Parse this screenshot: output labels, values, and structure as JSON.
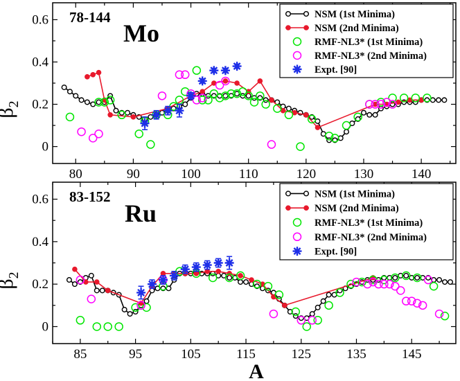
{
  "figure": {
    "xlabel": "A",
    "ylabel_main": "β",
    "ylabel_sub": "2"
  },
  "chart_data": [
    {
      "type": "line",
      "panel": "top",
      "label_mass": "78-144",
      "label_element": "Mo",
      "xlim": [
        76,
        146
      ],
      "ylim": [
        -0.08,
        0.68
      ],
      "xticks": [
        80,
        90,
        100,
        110,
        120,
        130,
        140
      ],
      "xtick_labels": [
        "80",
        "90",
        "100",
        "110",
        "120",
        "130",
        "140"
      ],
      "yticks": [
        0,
        0.2,
        0.4,
        0.6
      ],
      "ytick_labels": [
        "0",
        "0.2",
        "0.4",
        "0.6"
      ],
      "legend_position": "top-right",
      "series": [
        {
          "name": "NSM (1st Minima)",
          "style": "line-open-circle",
          "color": "#000000",
          "x": [
            78,
            79,
            80,
            81,
            82,
            83,
            84,
            85,
            86,
            87,
            88,
            89,
            90,
            91,
            92,
            93,
            94,
            95,
            96,
            97,
            98,
            99,
            100,
            101,
            102,
            103,
            104,
            105,
            106,
            107,
            108,
            109,
            110,
            111,
            112,
            113,
            114,
            115,
            116,
            117,
            118,
            119,
            120,
            121,
            122,
            123,
            124,
            125,
            126,
            127,
            128,
            129,
            130,
            131,
            132,
            133,
            134,
            135,
            136,
            137,
            138,
            139,
            140,
            141,
            142,
            143,
            144
          ],
          "y": [
            0.28,
            0.26,
            0.24,
            0.22,
            0.21,
            0.2,
            0.21,
            0.21,
            0.24,
            0.17,
            0.16,
            0.16,
            0.15,
            0.14,
            0.13,
            0.14,
            0.15,
            0.16,
            0.17,
            0.18,
            0.19,
            0.2,
            0.23,
            0.25,
            0.25,
            0.24,
            0.24,
            0.24,
            0.24,
            0.24,
            0.25,
            0.24,
            0.24,
            0.23,
            0.23,
            0.22,
            0.22,
            0.21,
            0.19,
            0.18,
            0.17,
            0.16,
            0.15,
            0.14,
            0.12,
            0.06,
            0.03,
            0.03,
            0.04,
            0.07,
            0.11,
            0.13,
            0.16,
            0.15,
            0.15,
            0.18,
            0.19,
            0.2,
            0.2,
            0.21,
            0.21,
            0.21,
            0.22,
            0.22,
            0.22,
            0.22,
            0.22
          ]
        },
        {
          "name": "NSM (2nd Minima)",
          "style": "line-filled-circle",
          "color": "#e8192c",
          "x": [
            82,
            83,
            84,
            85,
            86,
            90,
            96,
            100,
            102,
            104,
            106,
            108,
            110,
            112,
            114,
            116,
            118,
            120,
            122,
            132,
            134,
            136,
            138,
            140
          ],
          "y": [
            0.33,
            0.34,
            0.35,
            0.22,
            0.15,
            0.14,
            0.18,
            0.24,
            0.26,
            0.3,
            0.31,
            0.3,
            0.26,
            0.31,
            0.22,
            0.17,
            0.16,
            0.15,
            0.09,
            0.2,
            0.2,
            0.21,
            0.22,
            0.22
          ]
        },
        {
          "name": "RMF-NL3* (1st Minima)",
          "style": "open-circle",
          "color": "#00e600",
          "x": [
            79,
            84,
            85,
            86,
            88,
            91,
            92,
            93,
            94,
            96,
            97,
            98,
            99,
            101,
            102,
            103,
            104,
            105,
            106,
            107,
            108,
            109,
            110,
            111,
            112,
            113,
            115,
            117,
            119,
            121,
            124,
            125,
            127,
            129,
            131,
            133,
            135,
            137,
            139,
            141
          ],
          "y": [
            0.14,
            0.21,
            0.21,
            0.22,
            0.15,
            0.06,
            0.12,
            0.01,
            0.15,
            0.15,
            0.19,
            0.22,
            0.26,
            0.36,
            0.22,
            0.22,
            0.25,
            0.23,
            0.24,
            0.25,
            0.25,
            0.26,
            0.24,
            0.21,
            0.24,
            0.2,
            0.18,
            0.15,
            0.0,
            0.13,
            0.05,
            0.04,
            0.1,
            0.14,
            0.2,
            0.21,
            0.23,
            0.23,
            0.23,
            0.23
          ]
        },
        {
          "name": "RMF-NL3* (2nd Minima)",
          "style": "open-circle",
          "color": "#ff00ff",
          "x": [
            81,
            83,
            84,
            95,
            98,
            99,
            100,
            101,
            102,
            105,
            106,
            114,
            131,
            132,
            133,
            134,
            135
          ],
          "y": [
            0.07,
            0.04,
            0.06,
            0.24,
            0.34,
            0.34,
            0.25,
            0.22,
            0.23,
            0.29,
            0.31,
            0.01,
            0.2,
            0.2,
            0.2,
            0.21,
            0.2
          ]
        },
        {
          "name": "Expt. [90]",
          "style": "star-errorbar",
          "color": "#1e2fe8",
          "x": [
            92,
            94,
            96,
            98,
            100,
            102,
            104,
            106,
            108
          ],
          "y": [
            0.11,
            0.15,
            0.17,
            0.17,
            0.24,
            0.31,
            0.36,
            0.36,
            0.38
          ],
          "err": [
            0.03,
            0.02,
            0.02,
            0.03,
            0.015,
            0.01,
            0.01,
            0.01,
            0.01
          ]
        }
      ]
    },
    {
      "type": "line",
      "panel": "bottom",
      "label_mass": "83-152",
      "label_element": "Ru",
      "xlim": [
        80,
        153
      ],
      "ylim": [
        -0.08,
        0.68
      ],
      "xticks": [
        85,
        95,
        105,
        115,
        125,
        135,
        145
      ],
      "xtick_labels": [
        "85",
        "95",
        "105",
        "115",
        "125",
        "135",
        "145"
      ],
      "yticks": [
        0,
        0.2,
        0.4,
        0.6
      ],
      "ytick_labels": [
        "0",
        "0.2",
        "0.4",
        "0.6"
      ],
      "legend_position": "top-right",
      "series": [
        {
          "name": "NSM (1st Minima)",
          "style": "line-open-circle",
          "color": "#000000",
          "x": [
            83,
            84,
            85,
            86,
            87,
            88,
            89,
            90,
            91,
            92,
            93,
            94,
            95,
            96,
            97,
            98,
            99,
            100,
            101,
            102,
            103,
            104,
            105,
            106,
            107,
            108,
            109,
            110,
            111,
            112,
            113,
            114,
            115,
            116,
            117,
            118,
            119,
            120,
            121,
            122,
            123,
            124,
            125,
            126,
            127,
            128,
            129,
            130,
            131,
            132,
            133,
            134,
            135,
            136,
            137,
            138,
            139,
            140,
            141,
            142,
            143,
            144,
            145,
            146,
            147,
            148,
            149,
            150,
            151,
            152
          ],
          "y": [
            0.22,
            0.2,
            0.21,
            0.23,
            0.24,
            0.17,
            0.17,
            0.17,
            0.16,
            0.15,
            0.08,
            0.06,
            0.07,
            0.1,
            0.12,
            0.17,
            0.18,
            0.18,
            0.18,
            0.22,
            0.25,
            0.25,
            0.25,
            0.26,
            0.25,
            0.25,
            0.25,
            0.24,
            0.24,
            0.23,
            0.23,
            0.21,
            0.21,
            0.2,
            0.19,
            0.18,
            0.17,
            0.16,
            0.13,
            0.1,
            0.07,
            0.05,
            0.04,
            0.04,
            0.06,
            0.09,
            0.12,
            0.15,
            0.15,
            0.17,
            0.18,
            0.19,
            0.2,
            0.21,
            0.22,
            0.22,
            0.22,
            0.23,
            0.23,
            0.23,
            0.24,
            0.24,
            0.23,
            0.23,
            0.23,
            0.23,
            0.22,
            0.22,
            0.21,
            0.21
          ]
        },
        {
          "name": "NSM (2nd Minima)",
          "style": "line-filled-circle",
          "color": "#e8192c",
          "x": [
            84,
            86,
            88,
            90,
            96,
            98,
            100,
            102,
            104,
            106,
            108,
            110,
            112,
            114,
            116,
            118,
            120,
            122,
            138
          ],
          "y": [
            0.27,
            0.21,
            0.21,
            0.17,
            0.11,
            0.19,
            0.25,
            0.25,
            0.25,
            0.25,
            0.26,
            0.26,
            0.25,
            0.24,
            0.22,
            0.2,
            0.14,
            0.1,
            0.23
          ]
        },
        {
          "name": "RMF-NL3* (1st Minima)",
          "style": "open-circle",
          "color": "#00e600",
          "x": [
            85,
            88,
            90,
            92,
            95,
            97,
            100,
            103,
            106,
            109,
            112,
            114,
            117,
            119,
            121,
            124,
            126,
            128,
            130,
            132,
            134,
            136,
            138,
            140,
            142,
            144,
            146,
            149,
            151
          ],
          "y": [
            0.03,
            0.0,
            0.0,
            0.0,
            0.09,
            0.09,
            0.19,
            0.26,
            0.25,
            0.23,
            0.23,
            0.24,
            0.2,
            0.19,
            0.15,
            0.07,
            0.0,
            0.03,
            0.1,
            0.16,
            0.2,
            0.21,
            0.22,
            0.22,
            0.23,
            0.24,
            0.23,
            0.19,
            0.05
          ]
        },
        {
          "name": "RMF-NL3* (2nd Minima)",
          "style": "open-circle",
          "color": "#ff00ff",
          "x": [
            85,
            87,
            96,
            100,
            120,
            125,
            127,
            135,
            137,
            138,
            139,
            140,
            141,
            142,
            143,
            144,
            145,
            146,
            147,
            148,
            150
          ],
          "y": [
            0.22,
            0.13,
            0.1,
            0.22,
            0.06,
            0.03,
            0.03,
            0.21,
            0.2,
            0.21,
            0.2,
            0.2,
            0.2,
            0.19,
            0.17,
            0.12,
            0.12,
            0.11,
            0.1,
            0.22,
            0.06
          ]
        },
        {
          "name": "Expt. [90]",
          "style": "star-errorbar",
          "color": "#1e2fe8",
          "x": [
            96,
            98,
            100,
            102,
            104,
            106,
            108,
            110,
            112
          ],
          "y": [
            0.16,
            0.2,
            0.22,
            0.24,
            0.27,
            0.28,
            0.29,
            0.3,
            0.3
          ],
          "err": [
            0.03,
            0.02,
            0.02,
            0.02,
            0.02,
            0.02,
            0.02,
            0.02,
            0.03
          ]
        }
      ]
    }
  ]
}
